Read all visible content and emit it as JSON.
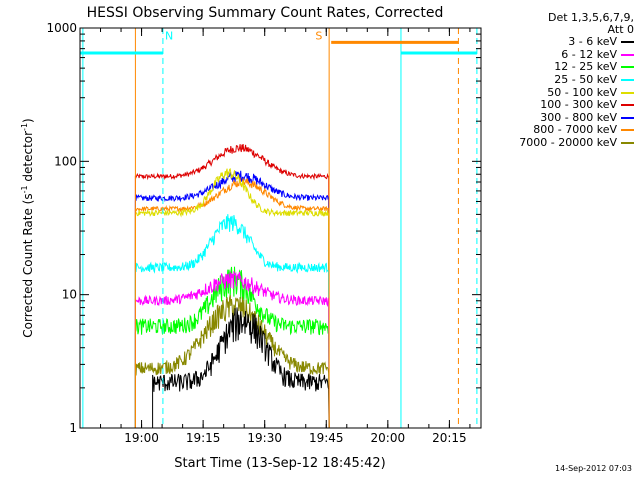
{
  "chart_data": {
    "type": "line",
    "title": "HESSI Observing Summary Count Rates, Corrected",
    "ylabel_main": "Corrected Count Rate (s",
    "ylabel_sup1": "-1",
    "ylabel_mid": " detector",
    "ylabel_sup2": "-1",
    "ylabel_end": ")",
    "xlabel": "Start Time (13-Sep-12 18:45:42)",
    "yscale": "log",
    "ylim": [
      1,
      1000
    ],
    "yticks": [
      "1",
      "10",
      "100",
      "1000"
    ],
    "xlim_minutes": [
      -0.7,
      97
    ],
    "xticks": [
      {
        "m": 14.3,
        "label": "19:00"
      },
      {
        "m": 29.3,
        "label": "19:15"
      },
      {
        "m": 44.3,
        "label": "19:30"
      },
      {
        "m": 59.3,
        "label": "19:45"
      },
      {
        "m": 74.3,
        "label": "20:00"
      },
      {
        "m": 89.3,
        "label": "20:15"
      }
    ],
    "detectors": "Det 1,3,5,6,7,9,",
    "attenuator": "Att 0",
    "legend": [
      {
        "label": "3 - 6 keV",
        "color": "#000000"
      },
      {
        "label": "6 - 12 keV",
        "color": "#ff00ff"
      },
      {
        "label": "12 - 25 keV",
        "color": "#00ff00"
      },
      {
        "label": "25 - 50 keV",
        "color": "#00ffff"
      },
      {
        "label": "50 - 100 keV",
        "color": "#dddd00"
      },
      {
        "label": "100 - 300 keV",
        "color": "#dd0000"
      },
      {
        "label": "300 - 800 keV",
        "color": "#0000ff"
      },
      {
        "label": "800 - 7000 keV",
        "color": "#ff8800"
      },
      {
        "label": "7000 - 20000 keV",
        "color": "#888800"
      }
    ],
    "series": [
      {
        "color": "#dd0000",
        "t_range": [
          12.8,
          60
        ],
        "base": 77,
        "peak": 126,
        "peak_t": 38.0,
        "width": 7.5,
        "noise": 0.04
      },
      {
        "color": "#0000ff",
        "t_range": [
          12.8,
          60
        ],
        "base": 53,
        "peak": 78,
        "peak_t": 38.5,
        "width": 7.5,
        "noise": 0.05
      },
      {
        "color": "#ff8800",
        "t_range": [
          12.8,
          60
        ],
        "base": 44,
        "peak": 70,
        "peak_t": 39.0,
        "width": 7.0,
        "noise": 0.04
      },
      {
        "color": "#dddd00",
        "t_range": [
          12.8,
          60
        ],
        "base": 41,
        "peak": 82,
        "peak_t": 35.5,
        "width": 5.0,
        "noise": 0.05
      },
      {
        "color": "#00ffff",
        "t_range": [
          12.8,
          60
        ],
        "base": 16,
        "peak": 35,
        "peak_t": 36.0,
        "width": 5.5,
        "noise": 0.08
      },
      {
        "color": "#00ff00",
        "t_range": [
          12.8,
          60
        ],
        "base": 5.8,
        "peak": 13,
        "peak_t": 36.5,
        "width": 6.0,
        "noise": 0.14
      },
      {
        "color": "#ff00ff",
        "t_range": [
          12.8,
          60
        ],
        "base": 9.0,
        "peak": 13,
        "peak_t": 36.5,
        "width": 8.0,
        "noise": 0.08
      },
      {
        "color": "#888800",
        "t_range": [
          12.8,
          60
        ],
        "base": 2.8,
        "peak": 8.2,
        "peak_t": 37.0,
        "width": 8.0,
        "noise": 0.12
      },
      {
        "color": "#000000",
        "t_range": [
          17.0,
          60
        ],
        "base": 2.2,
        "peak": 6.5,
        "peak_t": 39.0,
        "width": 6.0,
        "noise": 0.16
      }
    ],
    "flags": [
      {
        "label": "N",
        "color": "#00ffff",
        "text_m": 21.0
      },
      {
        "label": "S",
        "color": "#ff8800",
        "text_m": 57.5
      }
    ],
    "flag_bars": [
      {
        "color": "#00ffff",
        "t": [
          -0.7,
          19.5
        ],
        "level": 650
      },
      {
        "color": "#ff8800",
        "t": [
          60.5,
          91.5
        ],
        "level": 780
      },
      {
        "color": "#00ffff",
        "t": [
          77.5,
          96.0
        ],
        "level": 650
      }
    ],
    "vlines": [
      {
        "color": "#00ffff",
        "t": 0.0,
        "dash": false
      },
      {
        "color": "#ff8800",
        "t": 12.8,
        "dash": false
      },
      {
        "color": "#00ffff",
        "t": 19.5,
        "dash": true
      },
      {
        "color": "#ff8800",
        "t": 60.0,
        "dash": false
      },
      {
        "color": "#00ffff",
        "t": 77.5,
        "dash": false
      },
      {
        "color": "#ff8800",
        "t": 91.5,
        "dash": true
      },
      {
        "color": "#00ffff",
        "t": 96.0,
        "dash": true
      }
    ]
  },
  "timestamp": "14-Sep-2012 07:03"
}
